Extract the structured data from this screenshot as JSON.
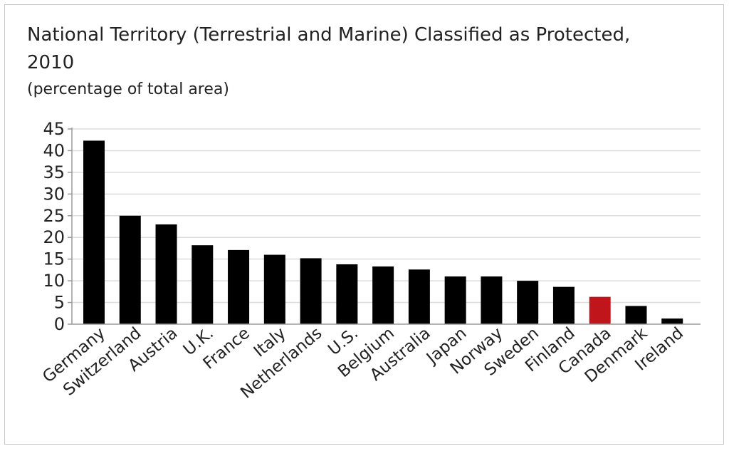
{
  "chart_data": {
    "type": "bar",
    "title": "National Territory (Terrestrial and Marine) Classified as Protected, 2010",
    "subtitle": "(percentage of total area)",
    "xlabel": "",
    "ylabel": "",
    "ylim": [
      0,
      45
    ],
    "yticks": [
      "0",
      "5",
      "10",
      "15",
      "20",
      "25",
      "30",
      "35",
      "40",
      "45"
    ],
    "grid": true,
    "categories": [
      "Germany",
      "Switzerland",
      "Austria",
      "U.K.",
      "France",
      "Italy",
      "Netherlands",
      "U.S.",
      "Belgium",
      "Australia",
      "Japan",
      "Norway",
      "Sweden",
      "Finland",
      "Canada",
      "Denmark",
      "Ireland"
    ],
    "values": [
      42.3,
      25.0,
      23.0,
      18.2,
      17.1,
      16.0,
      15.2,
      13.8,
      13.3,
      12.6,
      11.0,
      11.0,
      10.0,
      8.6,
      6.3,
      4.2,
      1.3
    ],
    "bar_color": "#000000",
    "highlight": {
      "category": "Canada",
      "color": "#c0151a"
    }
  }
}
